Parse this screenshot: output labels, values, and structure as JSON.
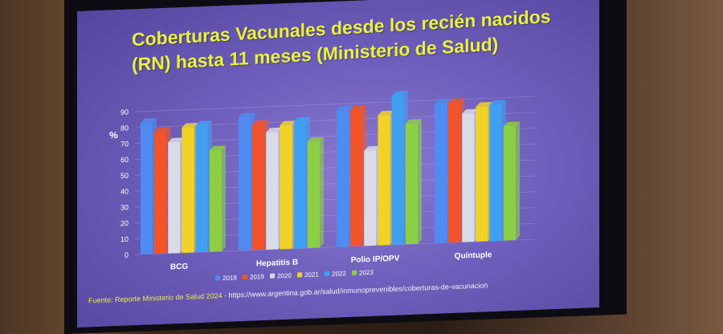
{
  "slide": {
    "title_line1": "Coberturas Vacunales desde los recién nacidos",
    "title_line2": "(RN) hasta 11 meses (Ministerio de Salud)",
    "source_label": "Fuente: Reporte Ministerio de Salud 2024 - ",
    "source_url": "https://www.argentina.gob.ar/salud/inmunoprevenibles/coberturas-de-vacunacion"
  },
  "chart_data": {
    "type": "bar",
    "ylabel": "%",
    "xlabel": "",
    "ylim": [
      0,
      90
    ],
    "yticks": [
      0,
      10,
      20,
      30,
      40,
      50,
      60,
      70,
      80,
      90
    ],
    "grid": true,
    "legend_position": "bottom",
    "categories": [
      "BCG",
      "Hepatitis B",
      "Polio IP/OPV",
      "Quíntuple"
    ],
    "series": [
      {
        "name": "2018",
        "color": "#4f8bf0",
        "values": [
          83,
          84,
          86,
          88
        ]
      },
      {
        "name": "2019",
        "color": "#f2542a",
        "values": [
          77,
          79,
          86,
          88
        ]
      },
      {
        "name": "2020",
        "color": "#d9dbe6",
        "values": [
          70,
          74,
          60,
          81
        ]
      },
      {
        "name": "2021",
        "color": "#f2d227",
        "values": [
          79,
          78,
          82,
          85
        ]
      },
      {
        "name": "2022",
        "color": "#3fa0f2",
        "values": [
          80,
          80,
          94,
          86
        ]
      },
      {
        "name": "2023",
        "color": "#8ccf45",
        "values": [
          64,
          67,
          76,
          72
        ]
      }
    ]
  }
}
